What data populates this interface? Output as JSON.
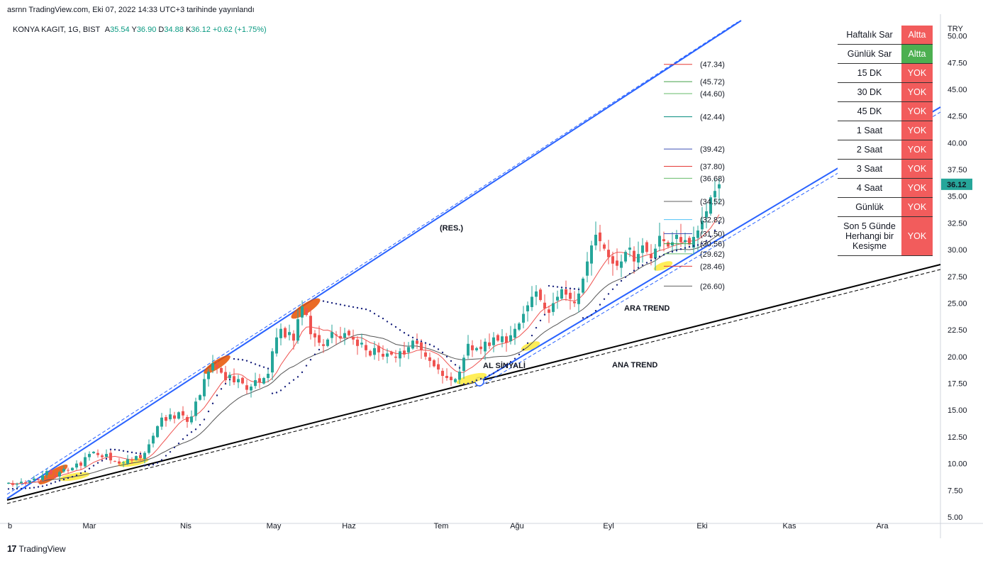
{
  "header": {
    "published": "asrnn TradingView.com, Eki 07, 2022 14:33 UTC+3 tarihinde yayınlandı"
  },
  "symbol": {
    "name": "KONYA KAGIT, 1G, BIST",
    "open_label": "A",
    "open": "35.54",
    "high_label": "Y",
    "high": "36.90",
    "low_label": "D",
    "low": "34.88",
    "close_label": "K",
    "close": "36.12",
    "change": "+0.62 (+1.75%)"
  },
  "footer": {
    "brand": "TradingView",
    "logo": "17"
  },
  "table": {
    "rows": [
      {
        "label": "Haftalık Sar",
        "value": "Altta",
        "color": "#f25c5c"
      },
      {
        "label": "Günlük Sar",
        "value": "Altta",
        "color": "#4caf50"
      },
      {
        "label": "15 DK",
        "value": "YOK",
        "color": "#f25c5c"
      },
      {
        "label": "30 DK",
        "value": "YOK",
        "color": "#f25c5c"
      },
      {
        "label": "45 DK",
        "value": "YOK",
        "color": "#f25c5c"
      },
      {
        "label": "1 Saat",
        "value": "YOK",
        "color": "#f25c5c"
      },
      {
        "label": "2 Saat",
        "value": "YOK",
        "color": "#f25c5c"
      },
      {
        "label": "3 Saat",
        "value": "YOK",
        "color": "#f25c5c"
      },
      {
        "label": "4 Saat",
        "value": "YOK",
        "color": "#f25c5c"
      },
      {
        "label": "Günlük",
        "value": "YOK",
        "color": "#f25c5c"
      },
      {
        "label": "Son 5 Günde Herhangi bir Kesişme",
        "value": "YOK",
        "color": "#f25c5c"
      }
    ]
  },
  "chart_data": {
    "type": "candlestick",
    "currency": "TRY",
    "ylim": [
      5.0,
      51.5
    ],
    "y_ticks": [
      "50.00",
      "47.50",
      "45.00",
      "42.50",
      "40.00",
      "37.50",
      "35.00",
      "32.50",
      "30.00",
      "27.50",
      "25.00",
      "22.50",
      "20.00",
      "17.50",
      "15.00",
      "12.50",
      "10.00",
      "7.50",
      "5.00"
    ],
    "x_ticks": [
      "b",
      "Mar",
      "Nis",
      "May",
      "Haz",
      "Tem",
      "Ağu",
      "Eyl",
      "Eki",
      "Kas",
      "Ara"
    ],
    "last_price": "36.12",
    "last_price_color": "#26a69a",
    "close_series": [
      8.2,
      8.0,
      8.1,
      8.3,
      8.2,
      8.4,
      8.6,
      8.5,
      8.9,
      9.3,
      9.0,
      8.8,
      9.2,
      9.5,
      9.4,
      9.6,
      10.0,
      9.8,
      10.6,
      10.9,
      11.1,
      10.8,
      10.6,
      10.9,
      10.3,
      10.2,
      10.0,
      10.1,
      10.4,
      10.3,
      10.7,
      10.5,
      11.0,
      11.8,
      12.6,
      13.5,
      14.3,
      14.0,
      14.6,
      14.2,
      14.8,
      14.5,
      13.9,
      14.4,
      15.8,
      16.4,
      17.9,
      18.6,
      19.4,
      19.0,
      18.5,
      17.8,
      18.3,
      17.6,
      17.9,
      17.5,
      16.9,
      17.2,
      17.8,
      17.6,
      18.0,
      18.4,
      20.5,
      21.8,
      22.6,
      21.8,
      22.3,
      21.5,
      23.5,
      24.7,
      23.9,
      22.1,
      21.8,
      21.3,
      21.0,
      21.6,
      22.3,
      22.0,
      21.7,
      22.2,
      22.0,
      21.6,
      21.0,
      21.3,
      20.6,
      20.1,
      20.8,
      20.4,
      20.0,
      20.3,
      20.2,
      19.9,
      20.5,
      20.2,
      20.9,
      21.5,
      21.2,
      20.6,
      20.0,
      19.6,
      19.1,
      18.8,
      18.2,
      18.0,
      17.8,
      17.9,
      18.6,
      19.9,
      21.2,
      20.6,
      20.8,
      20.7,
      21.4,
      21.0,
      21.8,
      21.5,
      21.9,
      21.3,
      22.0,
      22.6,
      23.1,
      24.0,
      24.8,
      25.6,
      26.1,
      25.3,
      24.5,
      24.1,
      25.0,
      25.6,
      26.3,
      25.8,
      25.4,
      25.0,
      25.9,
      27.3,
      28.9,
      30.4,
      31.4,
      30.8,
      30.1,
      29.3,
      28.7,
      28.5,
      28.9,
      29.8,
      30.2,
      28.9,
      29.6,
      30.4,
      29.8,
      29.2,
      30.1,
      31.3,
      30.8,
      30.3,
      30.7,
      31.4,
      30.7,
      30.9,
      30.5,
      31.2,
      31.8,
      32.7,
      33.6,
      34.9,
      35.5,
      36.12
    ],
    "fib_levels": [
      {
        "label": "(47.34)",
        "value": 47.34,
        "color": "#e53935"
      },
      {
        "label": "(45.72)",
        "value": 45.72,
        "color": "#43a047"
      },
      {
        "label": "(44.60)",
        "value": 44.6,
        "color": "#66bb6a"
      },
      {
        "label": "(42.44)",
        "value": 42.44,
        "color": "#00897b"
      },
      {
        "label": "(39.42)",
        "value": 39.42,
        "color": "#3f51b5"
      },
      {
        "label": "(37.80)",
        "value": 37.8,
        "color": "#e53935"
      },
      {
        "label": "(36.68)",
        "value": 36.68,
        "color": "#66bb6a"
      },
      {
        "label": "(34.52)",
        "value": 34.52,
        "color": "#616161"
      },
      {
        "label": "(32.82)",
        "value": 32.82,
        "color": "#4fc3f7"
      },
      {
        "label": "(31.50)",
        "value": 31.5,
        "color": "#3f51b5"
      },
      {
        "label": "(30.56)",
        "value": 30.56,
        "color": "#43a047"
      },
      {
        "label": "(29.62)",
        "value": 29.62,
        "color": "#66bb6a"
      },
      {
        "label": "(28.46)",
        "value": 28.46,
        "color": "#e53935"
      },
      {
        "label": "(26.60)",
        "value": 26.6,
        "color": "#616161"
      }
    ],
    "annotations": [
      {
        "text": "(RES.)",
        "color": "#2962ff"
      },
      {
        "text": "ARA TREND",
        "color": "#2962ff"
      },
      {
        "text": "ANA TREND",
        "color": "#131722"
      },
      {
        "text": "AL SİNYALİ",
        "color": "#131722"
      }
    ],
    "colors": {
      "up": "#26a69a",
      "down": "#ef5350",
      "resistance": "#2962ff",
      "main_trend": "#000000",
      "ma_fast": "#ef5350",
      "ma_slow": "#555555",
      "sar": "#1a237e"
    }
  }
}
